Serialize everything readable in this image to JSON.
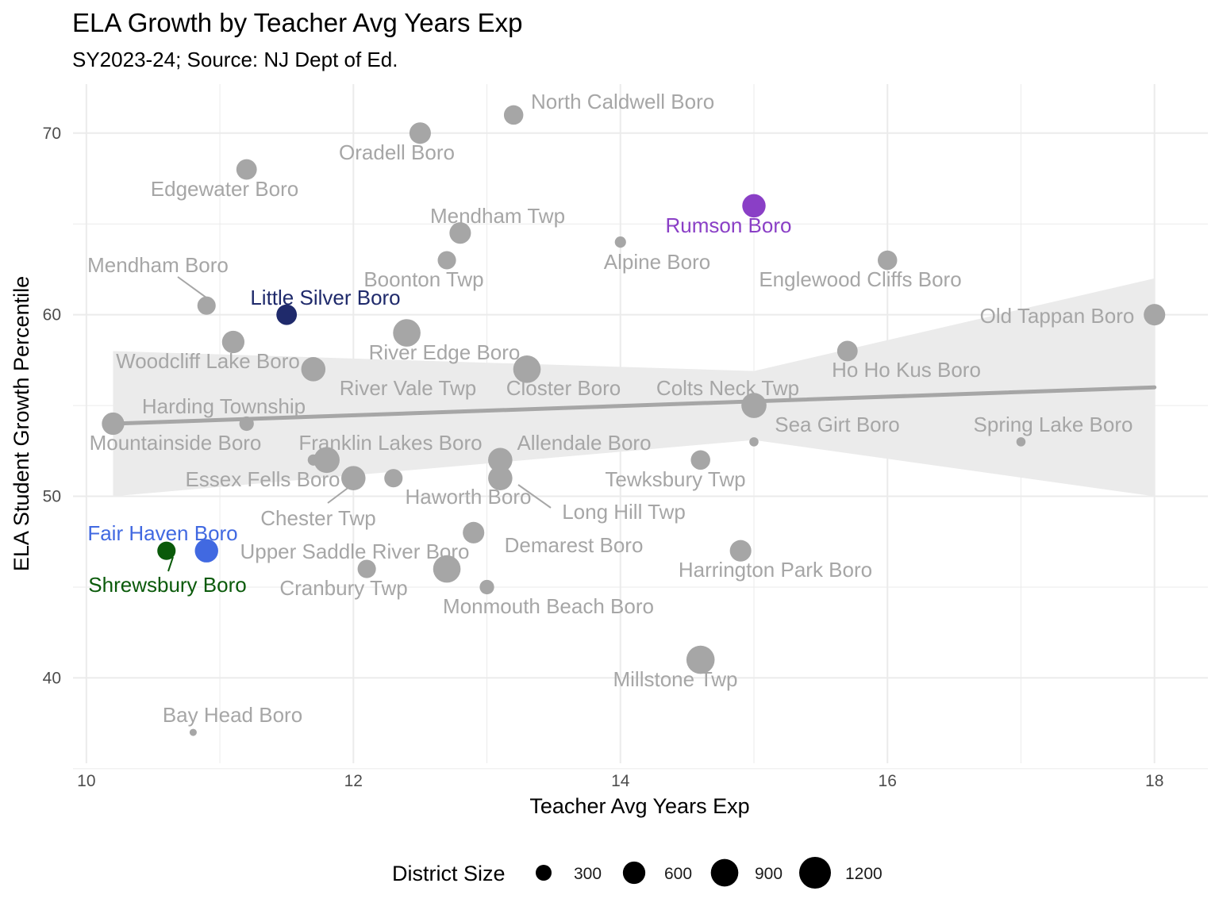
{
  "chart_data": {
    "type": "scatter",
    "title": "ELA Growth by Teacher Avg Years Exp",
    "subtitle": "SY2023-24; Source: NJ Dept of Ed.",
    "xlabel": "Teacher Avg Years Exp",
    "ylabel": "ELA Student Growth Percentile",
    "xlim": [
      9.9,
      18.4
    ],
    "ylim": [
      35.3,
      72.7
    ],
    "xticks": [
      10,
      12,
      14,
      16,
      18
    ],
    "yticks": [
      40,
      50,
      60,
      70
    ],
    "grid": true,
    "legend": {
      "title": "District Size",
      "position": "bottom",
      "entries": [
        {
          "label": "300",
          "size": 300
        },
        {
          "label": "600",
          "size": 600
        },
        {
          "label": "900",
          "size": 900
        },
        {
          "label": "1200",
          "size": 1200
        }
      ]
    },
    "trend": {
      "method": "linear",
      "x": [
        10.2,
        18.0
      ],
      "y": [
        54.0,
        56.0
      ],
      "band_lower": [
        50.0,
        50.0
      ],
      "band_upper": [
        58.0,
        62.0
      ],
      "color": "#a6a6a6",
      "band_color": "#ebebeb"
    },
    "colors": {
      "default": "#a6a6a6",
      "Rumson Boro": "#8a3fc6",
      "Little Silver Boro": "#1f2a6b",
      "Fair Haven Boro": "#4169e1",
      "Shrewsbury Boro": "#0a5a0a"
    },
    "points": [
      {
        "name": "North Caldwell Boro",
        "x": 13.2,
        "y": 71.0,
        "size": 450
      },
      {
        "name": "Oradell Boro",
        "x": 12.5,
        "y": 70.0,
        "size": 550
      },
      {
        "name": "Edgewater Boro",
        "x": 11.2,
        "y": 68.0,
        "size": 500
      },
      {
        "name": "Rumson Boro",
        "x": 15.0,
        "y": 66.0,
        "size": 650
      },
      {
        "name": "Mendham Twp",
        "x": 12.8,
        "y": 64.5,
        "size": 550
      },
      {
        "name": "Alpine Boro",
        "x": 14.0,
        "y": 64.0,
        "size": 150
      },
      {
        "name": "Boonton Twp",
        "x": 12.7,
        "y": 63.0,
        "size": 400
      },
      {
        "name": "Englewood Cliffs Boro",
        "x": 16.0,
        "y": 63.0,
        "size": 450
      },
      {
        "name": "Mendham Boro",
        "x": 10.9,
        "y": 60.5,
        "size": 400
      },
      {
        "name": "Little Silver Boro",
        "x": 11.5,
        "y": 60.0,
        "size": 500
      },
      {
        "name": "Old Tappan Boro",
        "x": 18.0,
        "y": 60.0,
        "size": 550
      },
      {
        "name": "River Edge Boro",
        "x": 12.4,
        "y": 59.0,
        "size": 900
      },
      {
        "name": "Woodcliff Lake Boro",
        "x": 11.1,
        "y": 58.5,
        "size": 600
      },
      {
        "name": "Ho Ho Kus Boro",
        "x": 15.7,
        "y": 58.0,
        "size": 500
      },
      {
        "name": "Closter Boro",
        "x": 13.3,
        "y": 57.0,
        "size": 900
      },
      {
        "name": "River Vale Twp",
        "x": 11.7,
        "y": 57.0,
        "size": 700
      },
      {
        "name": "Colts Neck Twp",
        "x": 15.0,
        "y": 55.0,
        "size": 750
      },
      {
        "name": "Mountainside Boro",
        "x": 10.2,
        "y": 54.0,
        "size": 600
      },
      {
        "name": "Harding Township",
        "x": 11.2,
        "y": 54.0,
        "size": 250
      },
      {
        "name": "Sea Girt Boro",
        "x": 15.0,
        "y": 53.0,
        "size": 100
      },
      {
        "name": "Spring Lake Boro",
        "x": 17.0,
        "y": 53.0,
        "size": 100
      },
      {
        "name": "Allendale Boro",
        "x": 13.1,
        "y": 52.0,
        "size": 700
      },
      {
        "name": "Tewksbury Twp",
        "x": 14.6,
        "y": 52.0,
        "size": 450
      },
      {
        "name": "Franklin Lakes Boro",
        "x": 11.8,
        "y": 52.0,
        "size": 800
      },
      {
        "name": "Essex Fells Boro",
        "x": 12.0,
        "y": 51.0,
        "size": 700
      },
      {
        "name": "Haworth Boro",
        "x": 12.3,
        "y": 51.0,
        "size": 400
      },
      {
        "name": "Long Hill Twp",
        "x": 13.1,
        "y": 51.0,
        "size": 700
      },
      {
        "name": "Chester Twp",
        "x": 11.7,
        "y": 52.0,
        "size": 150
      },
      {
        "name": "Demarest Boro",
        "x": 12.9,
        "y": 48.0,
        "size": 550
      },
      {
        "name": "Fair Haven Boro",
        "x": 10.9,
        "y": 47.0,
        "size": 650
      },
      {
        "name": "Shrewsbury Boro",
        "x": 10.6,
        "y": 47.0,
        "size": 400
      },
      {
        "name": "Harrington Park Boro",
        "x": 14.9,
        "y": 47.0,
        "size": 550
      },
      {
        "name": "Upper Saddle River Boro",
        "x": 12.7,
        "y": 46.0,
        "size": 900
      },
      {
        "name": "Cranbury Twp",
        "x": 12.1,
        "y": 46.0,
        "size": 400
      },
      {
        "name": "Monmouth Beach Boro",
        "x": 13.0,
        "y": 45.0,
        "size": 250
      },
      {
        "name": "Millstone Twp",
        "x": 14.6,
        "y": 41.0,
        "size": 950
      },
      {
        "name": "Bay Head Boro",
        "x": 10.8,
        "y": 37.0,
        "size": 60
      }
    ]
  }
}
